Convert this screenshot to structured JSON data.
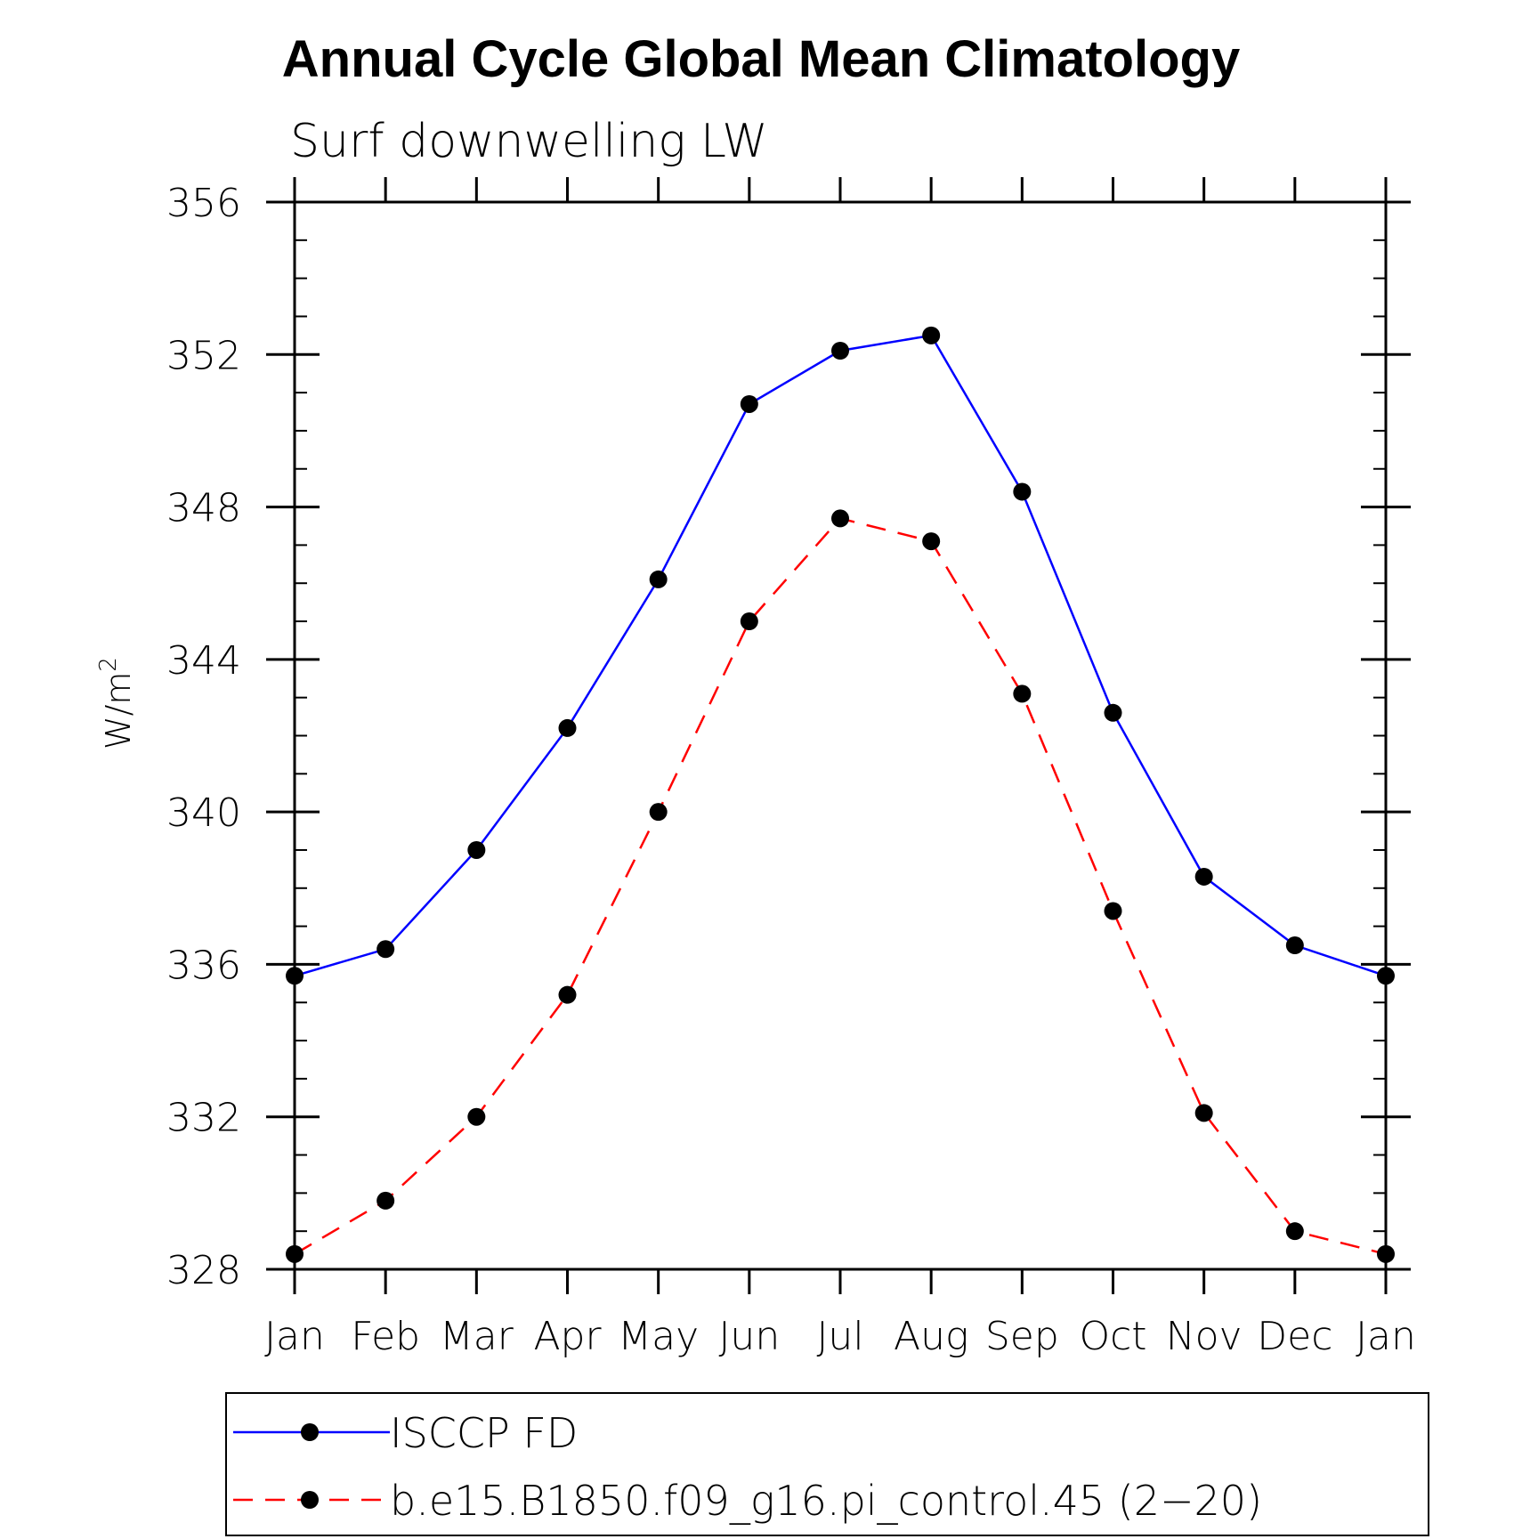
{
  "chart_data": {
    "type": "line",
    "title": "Annual Cycle Global Mean Climatology",
    "subtitle": "Surf downwelling LW",
    "ylabel_base": "W/m",
    "ylabel_sup": "2",
    "xlabel": "",
    "categories": [
      "Jan",
      "Feb",
      "Mar",
      "Apr",
      "May",
      "Jun",
      "Jul",
      "Aug",
      "Sep",
      "Oct",
      "Nov",
      "Dec",
      "Jan"
    ],
    "ylim": [
      328,
      356
    ],
    "yticks": [
      328,
      332,
      336,
      340,
      344,
      348,
      352,
      356
    ],
    "y_minor_step": 1,
    "grid": false,
    "legend_position": "bottom",
    "series": [
      {
        "name": "ISCCP FD",
        "color": "#0000ff",
        "dash": "solid",
        "marker": "filled-circle",
        "values": [
          335.7,
          336.4,
          339.0,
          342.2,
          346.1,
          350.7,
          352.1,
          352.5,
          348.4,
          342.6,
          338.3,
          336.5,
          335.7
        ]
      },
      {
        "name": "b.e15.B1850.f09_g16.pi_control.45 (2−20)",
        "color": "#ff0000",
        "dash": "dashed",
        "marker": "filled-circle",
        "values": [
          328.4,
          329.8,
          332.0,
          335.2,
          340.0,
          345.0,
          347.7,
          347.1,
          343.1,
          337.4,
          332.1,
          329.0,
          328.4
        ]
      }
    ]
  }
}
